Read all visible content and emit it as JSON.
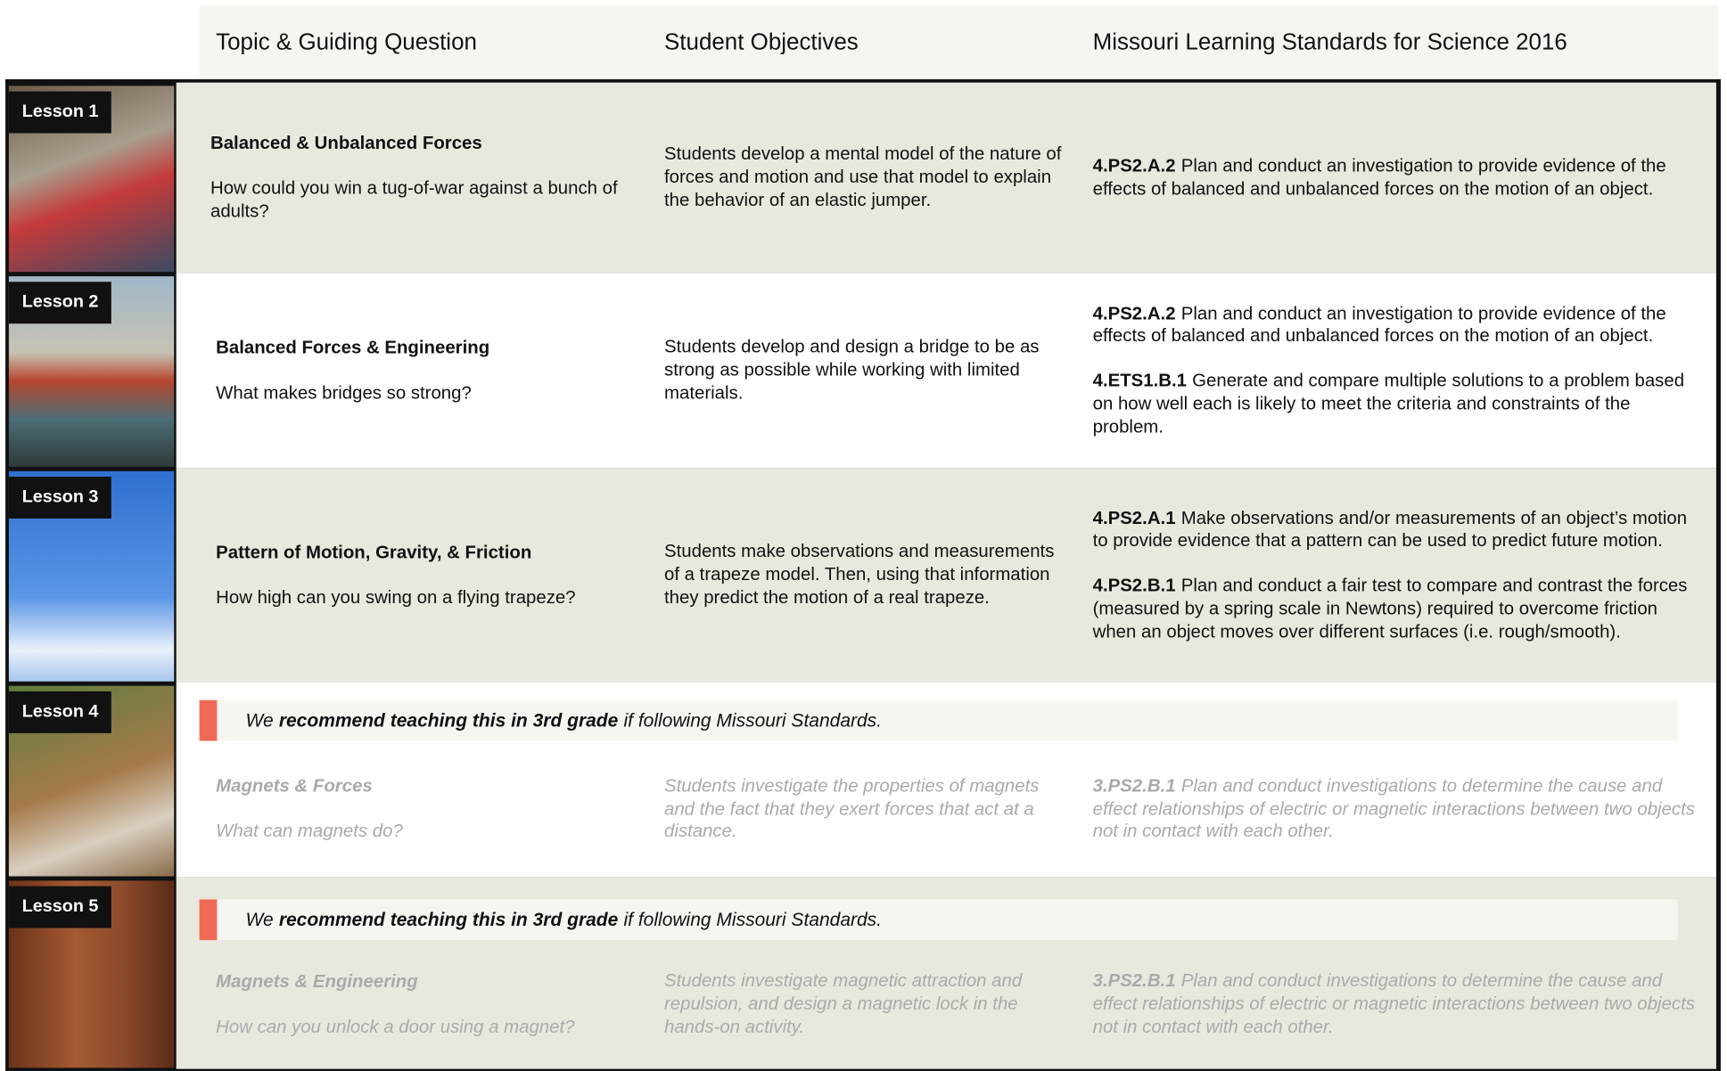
{
  "header": {
    "columns": [
      "Topic & Guiding Question",
      "Student Objectives",
      "Missouri Learning  Standards for Science 2016"
    ]
  },
  "lessons": [
    {
      "label": "Lesson 1",
      "title": "Balanced & Unbalanced Forces",
      "question": "How could you win a tug-of-war against a bunch of adults?",
      "objective": "Students develop a mental model of the nature of forces and motion and use that model to explain the behavior of an elastic jumper.",
      "standards": [
        {
          "code": "4.PS2.A.2",
          "text": "Plan and conduct an investigation to provide evidence of the effects of balanced and unbalanced forces on the motion of an object."
        }
      ]
    },
    {
      "label": "Lesson 2",
      "title": "Balanced Forces & Engineering",
      "question": "What makes bridges so strong?",
      "objective": "Students develop and design a bridge to be as strong as possible while working with limited materials.",
      "standards": [
        {
          "code": "4.PS2.A.2",
          "text": "Plan and conduct an investigation to provide evidence of the effects of balanced and unbalanced forces on the motion of an object."
        },
        {
          "code": "4.ETS1.B.1",
          "text": "Generate and compare multiple solutions to a problem based on how well each is likely to meet the criteria and constraints of the problem."
        }
      ]
    },
    {
      "label": "Lesson 3",
      "title": "Pattern of Motion, Gravity, & Friction",
      "question": "How high can you swing on a flying trapeze?",
      "objective": "Students make observations and measurements of a trapeze model. Then, using that information they predict the motion of a real trapeze.",
      "standards": [
        {
          "code": "4.PS2.A.1",
          "text": "Make observations and/or measurements of an object’s motion to provide evidence that a pattern can be used to predict future motion."
        },
        {
          "code": "4.PS2.B.1",
          "text": "Plan and conduct a fair test to compare and contrast the forces (measured by a spring scale in Newtons) required to overcome friction when an object moves over different surfaces (i.e. rough/smooth)."
        }
      ]
    },
    {
      "label": "Lesson 4",
      "note": {
        "prefix": "We",
        "bold": "recommend teaching this in 3rd grade",
        "suffix": "if following Missouri Standards."
      },
      "title": "Magnets & Forces",
      "question": "What can magnets do?",
      "objective": "Students investigate the properties of magnets and the fact that they exert forces that act at a distance.",
      "standards": [
        {
          "code": "3.PS2.B.1",
          "text": "Plan and conduct investigations to determine the cause and effect relationships of electric or magnetic interactions between two objects not in contact with each other."
        }
      ]
    },
    {
      "label": "Lesson 5",
      "note": {
        "prefix": "We",
        "bold": "recommend teaching this in 3rd grade",
        "suffix": "if following Missouri Standards."
      },
      "title": "Magnets & Engineering",
      "question": "How can you unlock a door using a magnet?",
      "objective": "Students investigate magnetic attraction and repulsion, and design a magnetic lock in the hands-on activity.",
      "standards": [
        {
          "code": "3.PS2.B.1",
          "text": "Plan and conduct investigations to determine the cause and effect relationships of electric or magnetic interactions between two objects not in contact with each other."
        }
      ]
    }
  ]
}
